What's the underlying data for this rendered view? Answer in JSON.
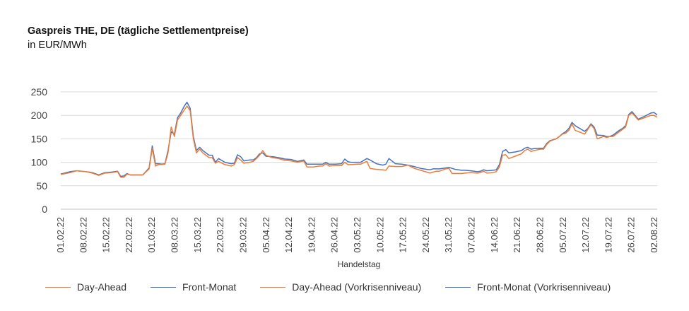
{
  "chart_data": {
    "type": "line",
    "title": "Gaspreis THE, DE (tägliche Settlementpreise)",
    "subtitle": "in EUR/MWh",
    "xlabel": "Handelstag",
    "ylabel": "",
    "ylim": [
      0,
      250
    ],
    "yticks": [
      0,
      50,
      100,
      150,
      200,
      250
    ],
    "grid": "horizontal",
    "legend_position": "bottom",
    "x_tick_labels": [
      "01.02.22",
      "08.02.22",
      "15.02.22",
      "22.02.22",
      "01.03.22",
      "08.03.22",
      "15.03.22",
      "22.03.22",
      "29.03.22",
      "05.04.22",
      "12.04.22",
      "19.04.22",
      "26.04.22",
      "03.05.22",
      "10.05.22",
      "17.05.22",
      "24.05.22",
      "31.05.22",
      "07.06.22",
      "14.06.22",
      "21.06.22",
      "28.06.22",
      "05.07.22",
      "12.07.22",
      "19.07.22",
      "26.07.22",
      "02.08.22"
    ],
    "x_start": "01.02.22",
    "x_end": "03.08.22",
    "series": [
      {
        "name": "Day-Ahead",
        "color": "#ED7D31",
        "points": [
          [
            0,
            74
          ],
          [
            3,
            78
          ],
          [
            5,
            82
          ],
          [
            8,
            80
          ],
          [
            10,
            77
          ],
          [
            12,
            72
          ],
          [
            14,
            77
          ],
          [
            16,
            78
          ],
          [
            18,
            80
          ],
          [
            19,
            68
          ],
          [
            20,
            68
          ],
          [
            21,
            75
          ],
          [
            22,
            73
          ],
          [
            24,
            73
          ],
          [
            26,
            73
          ],
          [
            28,
            86
          ],
          [
            29,
            130
          ],
          [
            30,
            92
          ],
          [
            31,
            95
          ],
          [
            32,
            95
          ],
          [
            33,
            96
          ],
          [
            34,
            120
          ],
          [
            35,
            175
          ],
          [
            36,
            155
          ],
          [
            37,
            190
          ],
          [
            38,
            200
          ],
          [
            39,
            210
          ],
          [
            40,
            220
          ],
          [
            41,
            210
          ],
          [
            42,
            150
          ],
          [
            43,
            120
          ],
          [
            44,
            128
          ],
          [
            45,
            120
          ],
          [
            47,
            110
          ],
          [
            48,
            110
          ],
          [
            49,
            98
          ],
          [
            50,
            102
          ],
          [
            52,
            95
          ],
          [
            54,
            92
          ],
          [
            55,
            95
          ],
          [
            56,
            110
          ],
          [
            57,
            105
          ],
          [
            58,
            98
          ],
          [
            60,
            100
          ],
          [
            61,
            102
          ],
          [
            62,
            108
          ],
          [
            63,
            115
          ],
          [
            64,
            125
          ],
          [
            65,
            115
          ],
          [
            67,
            110
          ],
          [
            69,
            108
          ],
          [
            71,
            104
          ],
          [
            73,
            103
          ],
          [
            75,
            100
          ],
          [
            77,
            103
          ],
          [
            78,
            90
          ],
          [
            80,
            90
          ],
          [
            82,
            92
          ],
          [
            83,
            92
          ],
          [
            84,
            97
          ],
          [
            85,
            92
          ],
          [
            87,
            93
          ],
          [
            89,
            93
          ],
          [
            90,
            100
          ],
          [
            91,
            95
          ],
          [
            92,
            95
          ],
          [
            94,
            96
          ],
          [
            95,
            96
          ],
          [
            97,
            102
          ],
          [
            98,
            87
          ],
          [
            100,
            85
          ],
          [
            102,
            84
          ],
          [
            103,
            83
          ],
          [
            104,
            92
          ],
          [
            106,
            91
          ],
          [
            108,
            91
          ],
          [
            110,
            94
          ],
          [
            112,
            87
          ],
          [
            114,
            83
          ],
          [
            116,
            79
          ],
          [
            117,
            77
          ],
          [
            118,
            79
          ],
          [
            119,
            81
          ],
          [
            120,
            81
          ],
          [
            122,
            86
          ],
          [
            123,
            87
          ],
          [
            124,
            76
          ],
          [
            125,
            76
          ],
          [
            127,
            76
          ],
          [
            128,
            77
          ],
          [
            130,
            78
          ],
          [
            132,
            77
          ],
          [
            133,
            78
          ],
          [
            134,
            81
          ],
          [
            135,
            77
          ],
          [
            137,
            78
          ],
          [
            138,
            80
          ],
          [
            139,
            90
          ],
          [
            140,
            115
          ],
          [
            141,
            116
          ],
          [
            142,
            108
          ],
          [
            144,
            113
          ],
          [
            146,
            118
          ],
          [
            147,
            125
          ],
          [
            148,
            128
          ],
          [
            149,
            123
          ],
          [
            150,
            125
          ],
          [
            152,
            128
          ],
          [
            153,
            128
          ],
          [
            154,
            138
          ],
          [
            155,
            145
          ],
          [
            157,
            150
          ],
          [
            158,
            155
          ],
          [
            159,
            160
          ],
          [
            160,
            162
          ],
          [
            161,
            168
          ],
          [
            162,
            182
          ],
          [
            163,
            168
          ],
          [
            165,
            163
          ],
          [
            166,
            160
          ],
          [
            167,
            170
          ],
          [
            168,
            180
          ],
          [
            169,
            172
          ],
          [
            170,
            150
          ],
          [
            172,
            155
          ],
          [
            173,
            153
          ],
          [
            174,
            155
          ],
          [
            175,
            155
          ],
          [
            177,
            165
          ],
          [
            178,
            170
          ],
          [
            179,
            175
          ],
          [
            180,
            200
          ],
          [
            181,
            205
          ],
          [
            182,
            198
          ],
          [
            183,
            190
          ],
          [
            185,
            195
          ],
          [
            187,
            200
          ],
          [
            188,
            200
          ],
          [
            189,
            196
          ]
        ]
      },
      {
        "name": "Front-Monat",
        "color": "#4472C4",
        "points": [
          [
            0,
            75
          ],
          [
            3,
            80
          ],
          [
            5,
            82
          ],
          [
            8,
            80
          ],
          [
            10,
            78
          ],
          [
            12,
            73
          ],
          [
            14,
            78
          ],
          [
            16,
            79
          ],
          [
            18,
            81
          ],
          [
            19,
            70
          ],
          [
            20,
            71
          ],
          [
            21,
            76
          ],
          [
            22,
            73
          ],
          [
            24,
            73
          ],
          [
            26,
            73
          ],
          [
            28,
            88
          ],
          [
            29,
            135
          ],
          [
            30,
            97
          ],
          [
            31,
            97
          ],
          [
            32,
            96
          ],
          [
            33,
            97
          ],
          [
            34,
            125
          ],
          [
            35,
            165
          ],
          [
            36,
            160
          ],
          [
            37,
            195
          ],
          [
            38,
            205
          ],
          [
            39,
            218
          ],
          [
            40,
            228
          ],
          [
            41,
            215
          ],
          [
            42,
            155
          ],
          [
            43,
            125
          ],
          [
            44,
            132
          ],
          [
            45,
            125
          ],
          [
            47,
            115
          ],
          [
            48,
            115
          ],
          [
            49,
            100
          ],
          [
            50,
            108
          ],
          [
            52,
            100
          ],
          [
            54,
            97
          ],
          [
            55,
            98
          ],
          [
            56,
            116
          ],
          [
            57,
            112
          ],
          [
            58,
            103
          ],
          [
            60,
            105
          ],
          [
            61,
            105
          ],
          [
            62,
            110
          ],
          [
            63,
            118
          ],
          [
            64,
            120
          ],
          [
            65,
            113
          ],
          [
            67,
            112
          ],
          [
            69,
            110
          ],
          [
            71,
            107
          ],
          [
            73,
            106
          ],
          [
            75,
            102
          ],
          [
            77,
            105
          ],
          [
            78,
            96
          ],
          [
            80,
            96
          ],
          [
            82,
            96
          ],
          [
            83,
            96
          ],
          [
            84,
            100
          ],
          [
            85,
            96
          ],
          [
            87,
            96
          ],
          [
            89,
            97
          ],
          [
            90,
            107
          ],
          [
            91,
            101
          ],
          [
            92,
            100
          ],
          [
            94,
            100
          ],
          [
            95,
            100
          ],
          [
            97,
            108
          ],
          [
            98,
            105
          ],
          [
            100,
            97
          ],
          [
            102,
            94
          ],
          [
            103,
            96
          ],
          [
            104,
            108
          ],
          [
            106,
            97
          ],
          [
            108,
            96
          ],
          [
            110,
            94
          ],
          [
            112,
            91
          ],
          [
            114,
            87
          ],
          [
            116,
            85
          ],
          [
            117,
            84
          ],
          [
            118,
            86
          ],
          [
            119,
            86
          ],
          [
            120,
            86
          ],
          [
            122,
            88
          ],
          [
            123,
            89
          ],
          [
            124,
            87
          ],
          [
            125,
            85
          ],
          [
            127,
            83
          ],
          [
            128,
            83
          ],
          [
            130,
            82
          ],
          [
            132,
            80
          ],
          [
            133,
            81
          ],
          [
            134,
            84
          ],
          [
            135,
            82
          ],
          [
            137,
            83
          ],
          [
            138,
            84
          ],
          [
            139,
            95
          ],
          [
            140,
            123
          ],
          [
            141,
            127
          ],
          [
            142,
            120
          ],
          [
            144,
            122
          ],
          [
            146,
            125
          ],
          [
            147,
            130
          ],
          [
            148,
            132
          ],
          [
            149,
            128
          ],
          [
            150,
            129
          ],
          [
            152,
            130
          ],
          [
            153,
            130
          ],
          [
            154,
            140
          ],
          [
            155,
            146
          ],
          [
            157,
            150
          ],
          [
            158,
            155
          ],
          [
            159,
            161
          ],
          [
            160,
            165
          ],
          [
            161,
            172
          ],
          [
            162,
            185
          ],
          [
            163,
            178
          ],
          [
            165,
            170
          ],
          [
            166,
            166
          ],
          [
            167,
            172
          ],
          [
            168,
            182
          ],
          [
            169,
            175
          ],
          [
            170,
            158
          ],
          [
            172,
            157
          ],
          [
            173,
            155
          ],
          [
            174,
            155
          ],
          [
            175,
            158
          ],
          [
            177,
            168
          ],
          [
            178,
            172
          ],
          [
            179,
            178
          ],
          [
            180,
            202
          ],
          [
            181,
            208
          ],
          [
            182,
            200
          ],
          [
            183,
            192
          ],
          [
            185,
            198
          ],
          [
            187,
            205
          ],
          [
            188,
            206
          ],
          [
            189,
            201
          ]
        ]
      },
      {
        "name": "Day-Ahead (Vorkrisenniveau)",
        "color": "#ED7D31",
        "points": []
      },
      {
        "name": "Front-Monat (Vorkrisenniveau)",
        "color": "#4472C4",
        "points": []
      }
    ]
  }
}
